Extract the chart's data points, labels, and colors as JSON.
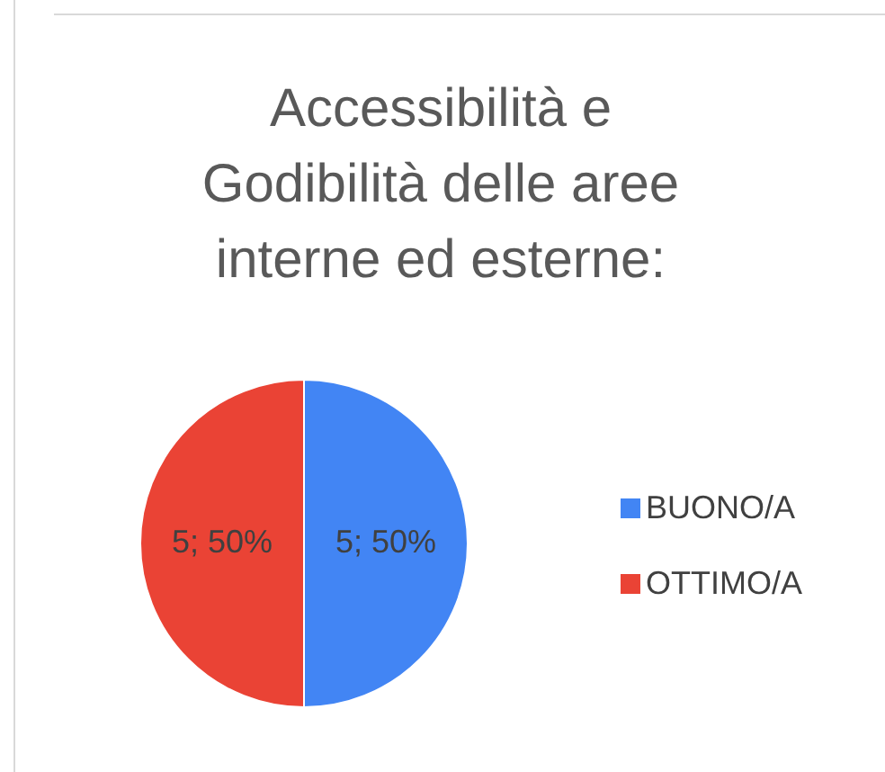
{
  "chart_data": {
    "type": "pie",
    "title": "Accessibilità e Godibilità delle aree interne ed esterne:",
    "categories": [
      "BUONO/A",
      "OTTIMO/A"
    ],
    "values": [
      5,
      5
    ],
    "colors": [
      "#4285f4",
      "#ea4335"
    ],
    "value_labels": [
      "5; 50%",
      "5; 50%"
    ],
    "legend": "right"
  }
}
